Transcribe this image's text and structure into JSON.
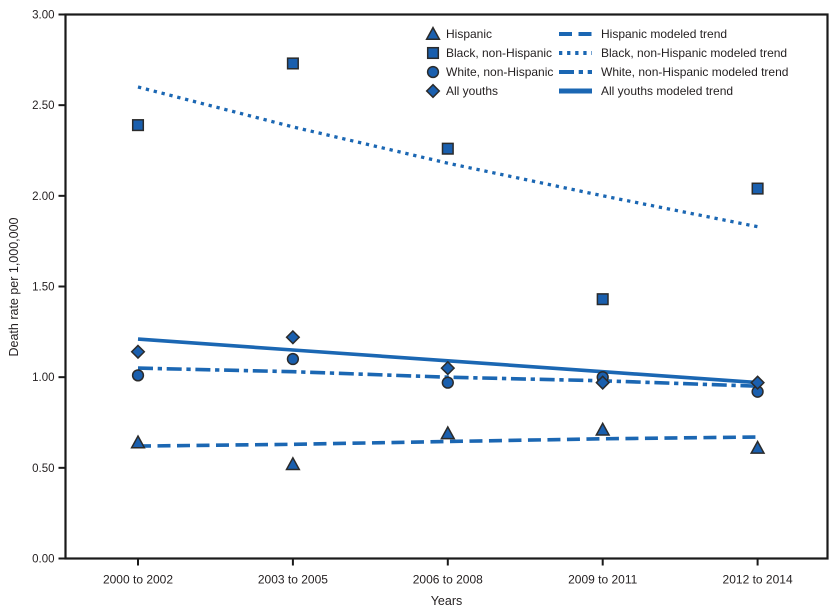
{
  "figure": {
    "colors": {
      "line_blue": "#1b67b3",
      "marker_fill": "#1a5fae",
      "marker_stroke": "#2b2b2b",
      "axis": "#1a1a1a",
      "text": "#231f20"
    }
  },
  "chart_data": {
    "type": "scatter",
    "title": "",
    "xlabel": "Years",
    "ylabel": "Death rate per 1,000,000",
    "ylim": [
      0,
      3
    ],
    "ytick_step": 0.5,
    "ytick_labels": [
      "0.00",
      "0.50",
      "1.00",
      "1.50",
      "2.00",
      "2.50",
      "3.00"
    ],
    "grid": false,
    "frame": "full-box",
    "legend_position": "inside-top-right-two-columns",
    "categories": [
      "2000 to 2002",
      "2003 to 2005",
      "2006 to 2008",
      "2009 to 2011",
      "2012 to 2014"
    ],
    "series": [
      {
        "name": "Hispanic",
        "marker": "triangle",
        "values": [
          0.64,
          0.52,
          0.69,
          0.71,
          0.61
        ]
      },
      {
        "name": "Black, non-Hispanic",
        "marker": "square",
        "values": [
          2.39,
          2.73,
          2.26,
          1.43,
          2.04
        ]
      },
      {
        "name": "White, non-Hispanic",
        "marker": "circle",
        "values": [
          1.01,
          1.1,
          0.97,
          1.0,
          0.92
        ]
      },
      {
        "name": "All youths",
        "marker": "diamond",
        "values": [
          1.14,
          1.22,
          1.05,
          0.97,
          0.97
        ]
      }
    ],
    "trends": [
      {
        "name": "Hispanic modeled trend",
        "style": "dashed",
        "values": [
          0.62,
          0.63,
          0.645,
          0.66,
          0.67
        ]
      },
      {
        "name": "Black, non-Hispanic modeled trend",
        "style": "dotted",
        "values": [
          2.6,
          2.38,
          2.18,
          2.0,
          1.83
        ]
      },
      {
        "name": "White, non-Hispanic modeled trend",
        "style": "dashdot",
        "values": [
          1.05,
          1.03,
          1.0,
          0.98,
          0.95
        ]
      },
      {
        "name": "All youths modeled trend",
        "style": "solid",
        "values": [
          1.21,
          1.15,
          1.09,
          1.03,
          0.97
        ]
      }
    ]
  }
}
